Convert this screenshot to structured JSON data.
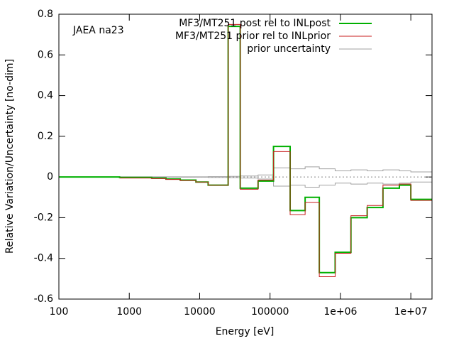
{
  "chart_data": {
    "type": "line",
    "step": true,
    "xlabel": "Energy [eV]",
    "ylabel": "Relative Variation/Uncertainty [no-dim]",
    "annotation": "JAEA na23",
    "log_x": true,
    "zero_axis": true,
    "legend": "top-right",
    "x": [
      100,
      728,
      2080,
      3320,
      5300,
      8850,
      13200,
      25400,
      37700,
      67600,
      112000,
      193000,
      315000,
      501000,
      841000,
      1410000,
      2400000,
      4020000,
      6880000,
      10000000,
      20000000
    ],
    "xlim": [
      100,
      20000000
    ],
    "xticks": [
      100,
      1000,
      10000,
      100000,
      {
        "value": 1000000,
        "label": "1e+06"
      },
      {
        "value": 10000000,
        "label": "1e+07"
      }
    ],
    "ylim": [
      -0.6,
      0.8
    ],
    "yticks": [
      -0.6,
      -0.4,
      -0.2,
      0,
      0.2,
      0.4,
      0.6,
      0.8
    ],
    "series": [
      {
        "name": "prior uncertainty",
        "color": "#a0a0a0",
        "band": true,
        "values": [
          0,
          0.001,
          0.001,
          0.001,
          0.001,
          0.001,
          0.002,
          0.003,
          0.005,
          0.01,
          0.045,
          0.04,
          0.05,
          0.04,
          0.03,
          0.035,
          0.03,
          0.035,
          0.03,
          0.025,
          0.025
        ]
      },
      {
        "name": "MF3/MT251 post rel to INLpost",
        "color": "#00b000",
        "width": 2,
        "values": [
          0,
          -0.002,
          -0.005,
          -0.01,
          -0.015,
          -0.025,
          -0.04,
          0.74,
          -0.055,
          -0.02,
          0.15,
          -0.165,
          -0.1,
          -0.47,
          -0.37,
          -0.2,
          -0.15,
          -0.055,
          -0.04,
          -0.11,
          -0.11
        ]
      },
      {
        "name": "MF3/MT251 prior rel to INLprior",
        "color": "#c81e1e",
        "width": 1,
        "values": [
          null,
          -0.005,
          -0.008,
          -0.012,
          -0.018,
          -0.025,
          -0.04,
          0.75,
          -0.06,
          -0.015,
          0.125,
          -0.185,
          -0.125,
          -0.49,
          -0.375,
          -0.19,
          -0.14,
          -0.04,
          -0.035,
          -0.115,
          -0.115
        ]
      }
    ]
  }
}
